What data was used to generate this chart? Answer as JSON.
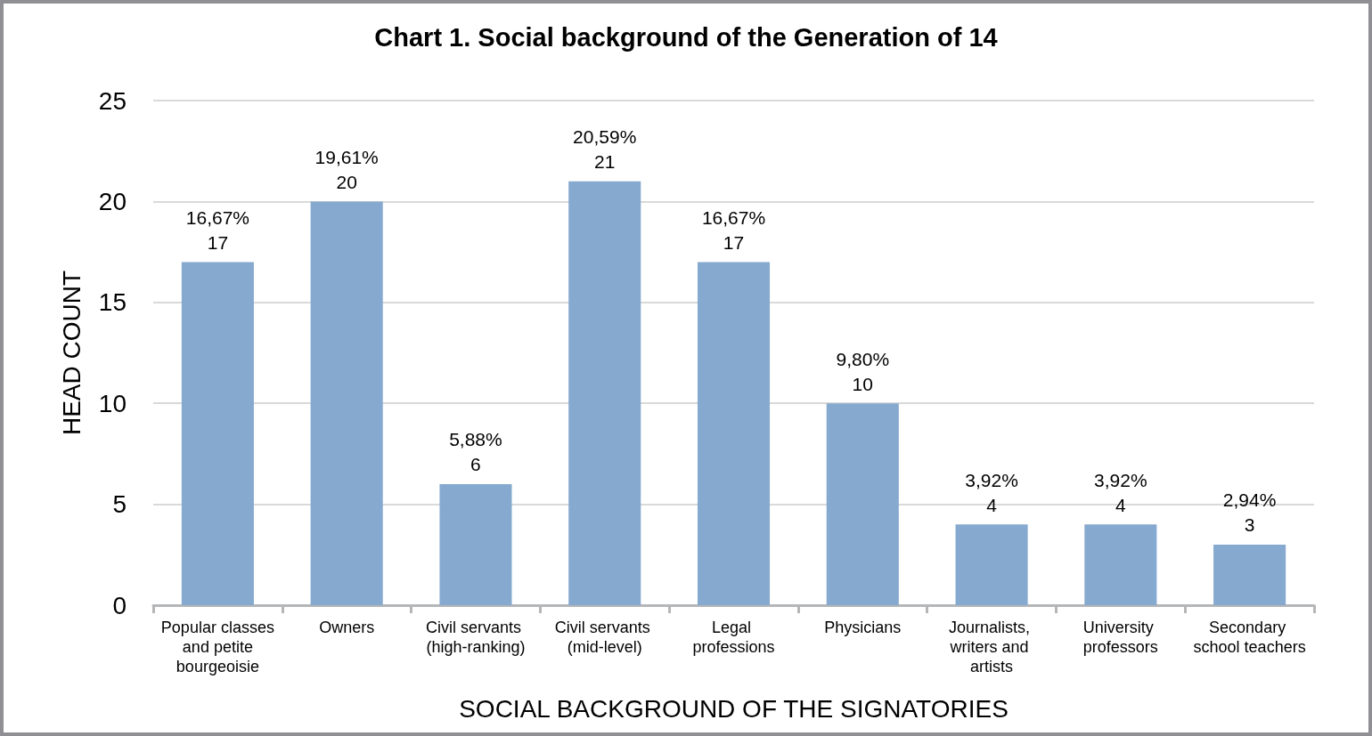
{
  "chart_data": {
    "type": "bar",
    "title": "Chart 1. Social background of the Generation of 14",
    "xlabel": "SOCIAL BACKGROUND OF THE SIGNATORIES",
    "ylabel": "HEAD COUNT",
    "categories": [
      "Popular classes and petite bourgeoisie",
      "Owners",
      "Civil servants (high-ranking)",
      "Civil servants (mid-level)",
      "Legal professions",
      "Physicians",
      "Journalists, writers and artists",
      "University professors",
      "Secondary school teachers"
    ],
    "values": [
      17,
      20,
      6,
      21,
      17,
      10,
      4,
      4,
      3
    ],
    "value_labels": [
      "16,67%\n17",
      "19,61%\n20",
      "5,88%\n6",
      "20,59%\n21",
      "16,67%\n17",
      "9,80%\n10",
      "3,92%\n4",
      "3,92%\n4",
      "2,94%\n3"
    ],
    "color": "#85a9cf",
    "ylim": [
      0,
      25
    ],
    "yticks": [
      0,
      5,
      10,
      15,
      20,
      25
    ],
    "grid": "y"
  }
}
